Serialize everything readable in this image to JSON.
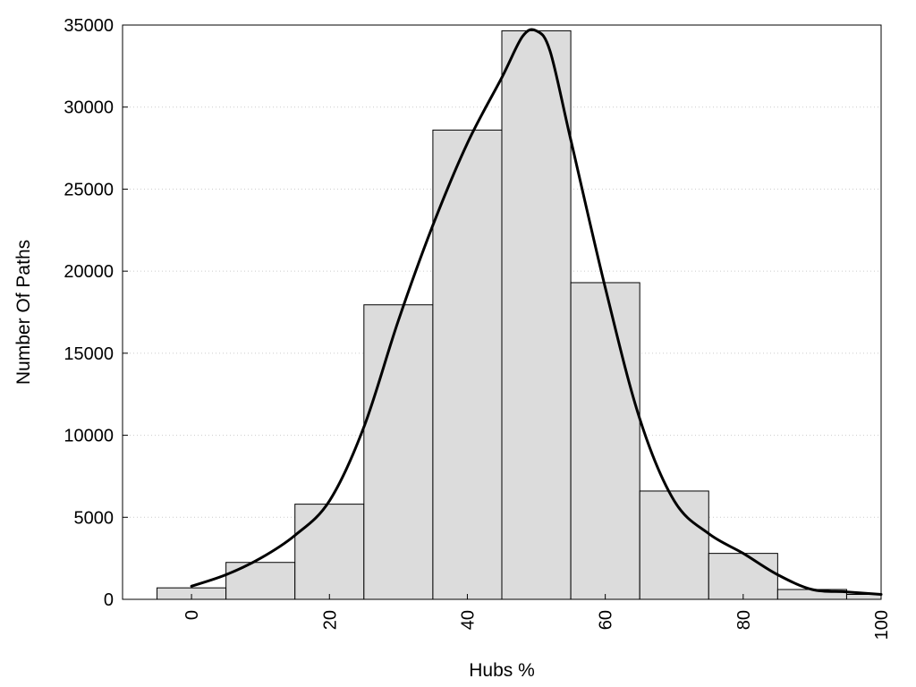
{
  "chart_data": {
    "type": "bar",
    "subtype": "histogram-with-density-curve",
    "xlabel": "Hubs %",
    "ylabel": "Number Of Paths",
    "xlim": [
      -10,
      100
    ],
    "ylim": [
      0,
      35000
    ],
    "x_ticks": [
      0,
      20,
      40,
      60,
      80,
      100
    ],
    "y_ticks": [
      0,
      5000,
      10000,
      15000,
      20000,
      25000,
      30000,
      35000
    ],
    "x_tick_labels": [
      "0",
      "20",
      "40",
      "60",
      "80",
      "100"
    ],
    "y_tick_labels": [
      "0",
      "5000",
      "10000",
      "15000",
      "20000",
      "25000",
      "30000",
      "35000"
    ],
    "grid": "horizontal dotted",
    "bin_width": 10,
    "bins": [
      {
        "center": 0,
        "value": 700
      },
      {
        "center": 10,
        "value": 2250
      },
      {
        "center": 20,
        "value": 5800
      },
      {
        "center": 30,
        "value": 17950
      },
      {
        "center": 40,
        "value": 28600
      },
      {
        "center": 50,
        "value": 34650
      },
      {
        "center": 60,
        "value": 19300
      },
      {
        "center": 70,
        "value": 6600
      },
      {
        "center": 80,
        "value": 2800
      },
      {
        "center": 90,
        "value": 600
      },
      {
        "center": 100,
        "value": 300
      }
    ],
    "density_curve": {
      "x": [
        0,
        5,
        10,
        15,
        20,
        25,
        30,
        35,
        40,
        45,
        48,
        50,
        52,
        55,
        60,
        65,
        70,
        75,
        80,
        85,
        90,
        95,
        100
      ],
      "y": [
        800,
        1500,
        2500,
        3900,
        6000,
        10500,
        17000,
        22800,
        27800,
        31800,
        34300,
        34650,
        33400,
        28000,
        19000,
        11000,
        6000,
        4000,
        2800,
        1500,
        600,
        450,
        300
      ]
    },
    "colors": {
      "bar_fill": "#dcdcdc",
      "bar_stroke": "#000000",
      "curve": "#000000",
      "grid": "#cccccc"
    }
  }
}
